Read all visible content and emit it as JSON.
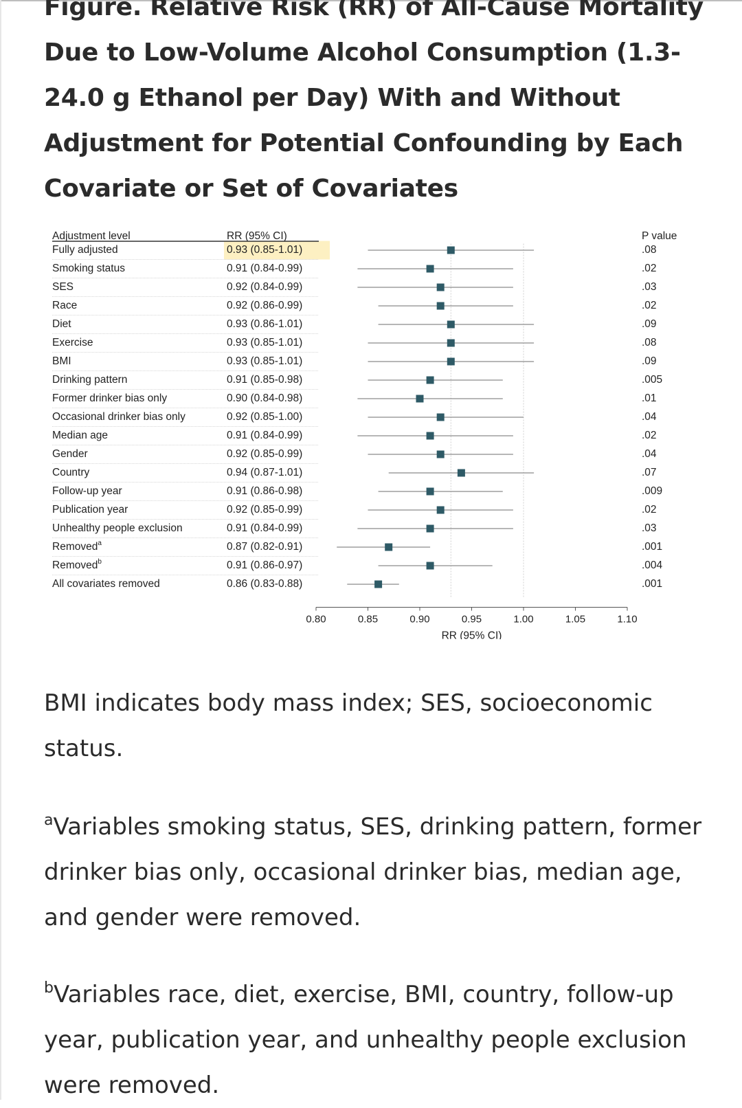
{
  "title": "Figure. Relative Risk (RR) of All-Cause Mortality Due to Low-Volume Alcohol Consumption (1.3-24.0 g Ethanol per Day) With and Without Adjustment for Potential Confounding by Each Covariate or Set of Covariates",
  "footnotes": {
    "abbreviations": "BMI indicates body mass index; SES, socioeconomic status.",
    "a_marker": "a",
    "a_text": "Variables smoking status, SES, drinking pattern, former drinker bias only, occasional drinker bias, median age, and gender were removed.",
    "b_marker": "b",
    "b_text": "Variables race, diet, exercise, BMI, country, follow-up year, publication year, and unhealthy people exclusion were removed."
  },
  "colors": {
    "marker": "#2e5a66",
    "ci_line": "#8a8a8a",
    "highlight": "#fdf0c2",
    "reference_line": "#cfcfcf"
  },
  "chart_data": {
    "type": "forest",
    "column_headers": {
      "label": "Adjustment level",
      "ci": "RR (95% CI)",
      "p": "P value"
    },
    "xlabel": "RR (95% CI)",
    "xlim": [
      0.8,
      1.1
    ],
    "xticks": [
      "0.80",
      "0.85",
      "0.90",
      "0.95",
      "1.00",
      "1.05",
      "1.10"
    ],
    "reference_lines": [
      1.0,
      0.93
    ],
    "highlighted_row": 0,
    "rows": [
      {
        "label": "Fully adjusted",
        "ci_text": "0.93 (0.85-1.01)",
        "rr": 0.93,
        "lo": 0.85,
        "hi": 1.01,
        "p": ".08"
      },
      {
        "label": "Smoking status",
        "ci_text": "0.91 (0.84-0.99)",
        "rr": 0.91,
        "lo": 0.84,
        "hi": 0.99,
        "p": ".02"
      },
      {
        "label": "SES",
        "ci_text": "0.92 (0.84-0.99)",
        "rr": 0.92,
        "lo": 0.84,
        "hi": 0.99,
        "p": ".03"
      },
      {
        "label": "Race",
        "ci_text": "0.92 (0.86-0.99)",
        "rr": 0.92,
        "lo": 0.86,
        "hi": 0.99,
        "p": ".02"
      },
      {
        "label": "Diet",
        "ci_text": "0.93 (0.86-1.01)",
        "rr": 0.93,
        "lo": 0.86,
        "hi": 1.01,
        "p": ".09"
      },
      {
        "label": "Exercise",
        "ci_text": "0.93 (0.85-1.01)",
        "rr": 0.93,
        "lo": 0.85,
        "hi": 1.01,
        "p": ".08"
      },
      {
        "label": "BMI",
        "ci_text": "0.93 (0.85-1.01)",
        "rr": 0.93,
        "lo": 0.85,
        "hi": 1.01,
        "p": ".09"
      },
      {
        "label": "Drinking pattern",
        "ci_text": "0.91 (0.85-0.98)",
        "rr": 0.91,
        "lo": 0.85,
        "hi": 0.98,
        "p": ".005"
      },
      {
        "label": "Former drinker bias only",
        "ci_text": "0.90 (0.84-0.98)",
        "rr": 0.9,
        "lo": 0.84,
        "hi": 0.98,
        "p": ".01"
      },
      {
        "label": "Occasional drinker bias only",
        "ci_text": "0.92 (0.85-1.00)",
        "rr": 0.92,
        "lo": 0.85,
        "hi": 1.0,
        "p": ".04"
      },
      {
        "label": "Median age",
        "ci_text": "0.91 (0.84-0.99)",
        "rr": 0.91,
        "lo": 0.84,
        "hi": 0.99,
        "p": ".02"
      },
      {
        "label": "Gender",
        "ci_text": "0.92 (0.85-0.99)",
        "rr": 0.92,
        "lo": 0.85,
        "hi": 0.99,
        "p": ".04"
      },
      {
        "label": "Country",
        "ci_text": "0.94 (0.87-1.01)",
        "rr": 0.94,
        "lo": 0.87,
        "hi": 1.01,
        "p": ".07"
      },
      {
        "label": "Follow-up year",
        "ci_text": "0.91 (0.86-0.98)",
        "rr": 0.91,
        "lo": 0.86,
        "hi": 0.98,
        "p": ".009"
      },
      {
        "label": "Publication year",
        "ci_text": "0.92 (0.85-0.99)",
        "rr": 0.92,
        "lo": 0.85,
        "hi": 0.99,
        "p": ".02"
      },
      {
        "label": "Unhealthy people exclusion",
        "ci_text": "0.91 (0.84-0.99)",
        "rr": 0.91,
        "lo": 0.84,
        "hi": 0.99,
        "p": ".03"
      },
      {
        "label": "Removed",
        "sup": "a",
        "ci_text": "0.87 (0.82-0.91)",
        "rr": 0.87,
        "lo": 0.82,
        "hi": 0.91,
        "p": ".001"
      },
      {
        "label": "Removed",
        "sup": "b",
        "ci_text": "0.91 (0.86-0.97)",
        "rr": 0.91,
        "lo": 0.86,
        "hi": 0.97,
        "p": ".004"
      },
      {
        "label": "All covariates removed",
        "ci_text": "0.86 (0.83-0.88)",
        "rr": 0.86,
        "lo": 0.83,
        "hi": 0.88,
        "p": ".001"
      }
    ]
  }
}
